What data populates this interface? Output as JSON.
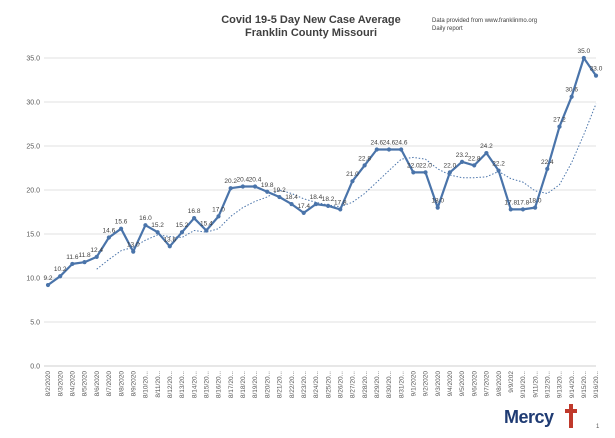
{
  "header": {
    "title_line1": "Covid 19-5 Day New Case Average",
    "title_line2": "Franklin County Missouri",
    "source_line1": "Data provided from www.franklinmo.org",
    "source_line2": "Daily report"
  },
  "logo": {
    "word": "Mercy",
    "brand_color": "#1f3b73",
    "cross_color": "#c0392b"
  },
  "page_number": "1",
  "colors": {
    "line": "#4a74aa",
    "trend": "#4a74aa",
    "grid": "#d9d9d9",
    "axis": "#bfbfbf"
  },
  "chart_data": {
    "type": "line",
    "title": "Covid 19-5 Day New Case Average",
    "subtitle": "Franklin County Missouri",
    "xlabel": "",
    "ylabel": "",
    "ylim": [
      0,
      35
    ],
    "yticks": [
      0,
      5,
      10,
      15,
      20,
      25,
      30,
      35
    ],
    "ytick_labels": [
      "0.0",
      "5.0",
      "10.0",
      "15.0",
      "20.0",
      "25.0",
      "30.0",
      "35.0"
    ],
    "grid": "horizontal",
    "x": [
      "8/2/2020",
      "8/3/2020",
      "8/4/2020",
      "8/5/2020",
      "8/6/2020",
      "8/7/2020",
      "8/8/2020",
      "8/9/2020",
      "8/10/2020",
      "8/11/2020",
      "8/12/2020",
      "8/13/2020",
      "8/14/2020",
      "8/15/2020",
      "8/16/2020",
      "8/17/2020",
      "8/18/2020",
      "8/19/2020",
      "8/20/2020",
      "8/21/2020",
      "8/22/2020",
      "8/23/2020",
      "8/24/2020",
      "8/25/2020",
      "8/26/2020",
      "8/27/2020",
      "8/28/2020",
      "8/29/2020",
      "8/30/2020",
      "8/31/2020",
      "9/1/2020",
      "9/2/2020",
      "9/3/2020",
      "9/4/2020",
      "9/5/2020",
      "9/6/2020",
      "9/7/2020",
      "9/8/2020",
      "9/9/2020",
      "9/10/2020",
      "9/11/2020",
      "9/12/2020",
      "9/13/2020",
      "9/14/2020",
      "9/15/2020",
      "9/16/2020"
    ],
    "x_tick_labels": [
      "8/2/2020",
      "8/3/2020",
      "8/4/2020",
      "8/5/2020",
      "8/6/2020",
      "8/7/2020",
      "8/8/2020",
      "8/9/2020",
      "8/10/20...",
      "8/11/20...",
      "8/12/20...",
      "8/13/20...",
      "8/14/20...",
      "8/15/20...",
      "8/16/20...",
      "8/17/20...",
      "8/18/20...",
      "8/19/20...",
      "8/20/20...",
      "8/21/20...",
      "8/22/20...",
      "8/23/20...",
      "8/24/20...",
      "8/25/20...",
      "8/26/20...",
      "8/27/20...",
      "8/28/20...",
      "8/29/20...",
      "8/30/20...",
      "8/31/20...",
      "9/1/2020",
      "9/2/2020",
      "9/3/2020",
      "9/4/2020",
      "9/5/2020",
      "9/6/2020",
      "9/7/2020",
      "9/8/2020",
      "9/9/202",
      "9/10/20...",
      "9/11/20...",
      "9/12/20...",
      "9/13/20...",
      "9/14/20...",
      "9/15/20...",
      "9/16/20..."
    ],
    "series": [
      {
        "values": [
          9.2,
          10.2,
          11.6,
          11.8,
          12.4,
          14.6,
          15.6,
          13.0,
          16.0,
          15.2,
          13.6,
          15.2,
          16.8,
          15.4,
          17.0,
          20.2,
          20.4,
          20.4,
          19.8,
          19.2,
          18.4,
          17.4,
          18.4,
          18.2,
          17.8,
          21.0,
          22.8,
          24.6,
          24.6,
          24.6,
          22.0,
          22.0,
          18.0,
          22.0,
          23.2,
          22.8,
          24.2,
          22.2,
          17.8,
          17.8,
          18.0,
          22.4,
          27.2,
          30.6,
          35.0,
          33.0
        ],
        "labels": [
          "9.2",
          "10.2",
          "11.6",
          "11.8",
          "12.4",
          "14.6",
          "15.6",
          "13.0",
          "16.0",
          "15.2",
          "13.6",
          "15.2",
          "16.8",
          "15.4",
          "17.0",
          "20.2",
          "20.4",
          "20.4",
          "19.8",
          "19.2",
          "18.4",
          "17.4",
          "18.4",
          "18.2",
          "17.8",
          "21.0",
          "22.8",
          "24.6",
          "24.6",
          "24.6",
          "22.0",
          "22.0",
          "18.0",
          "22.0",
          "23.2",
          "22.8",
          "24.2",
          "22.2",
          "17.8",
          "17.8",
          "18.0",
          "22.4",
          "27.2",
          "30.6",
          "35.0",
          "33.0"
        ]
      },
      {
        "type": "trendline",
        "style": "dotted",
        "values": [
          null,
          null,
          null,
          null,
          11.0,
          12.1,
          13.1,
          13.5,
          14.3,
          14.9,
          14.7,
          14.6,
          15.4,
          15.2,
          15.6,
          17.0,
          18.0,
          18.7,
          19.2,
          20.0,
          19.6,
          19.0,
          18.6,
          18.3,
          18.1,
          18.6,
          19.6,
          20.9,
          22.2,
          23.5,
          23.7,
          23.5,
          22.4,
          21.7,
          21.4,
          21.4,
          21.5,
          22.1,
          21.3,
          20.9,
          19.9,
          19.6,
          20.6,
          23.1,
          26.3,
          29.8
        ]
      }
    ]
  }
}
